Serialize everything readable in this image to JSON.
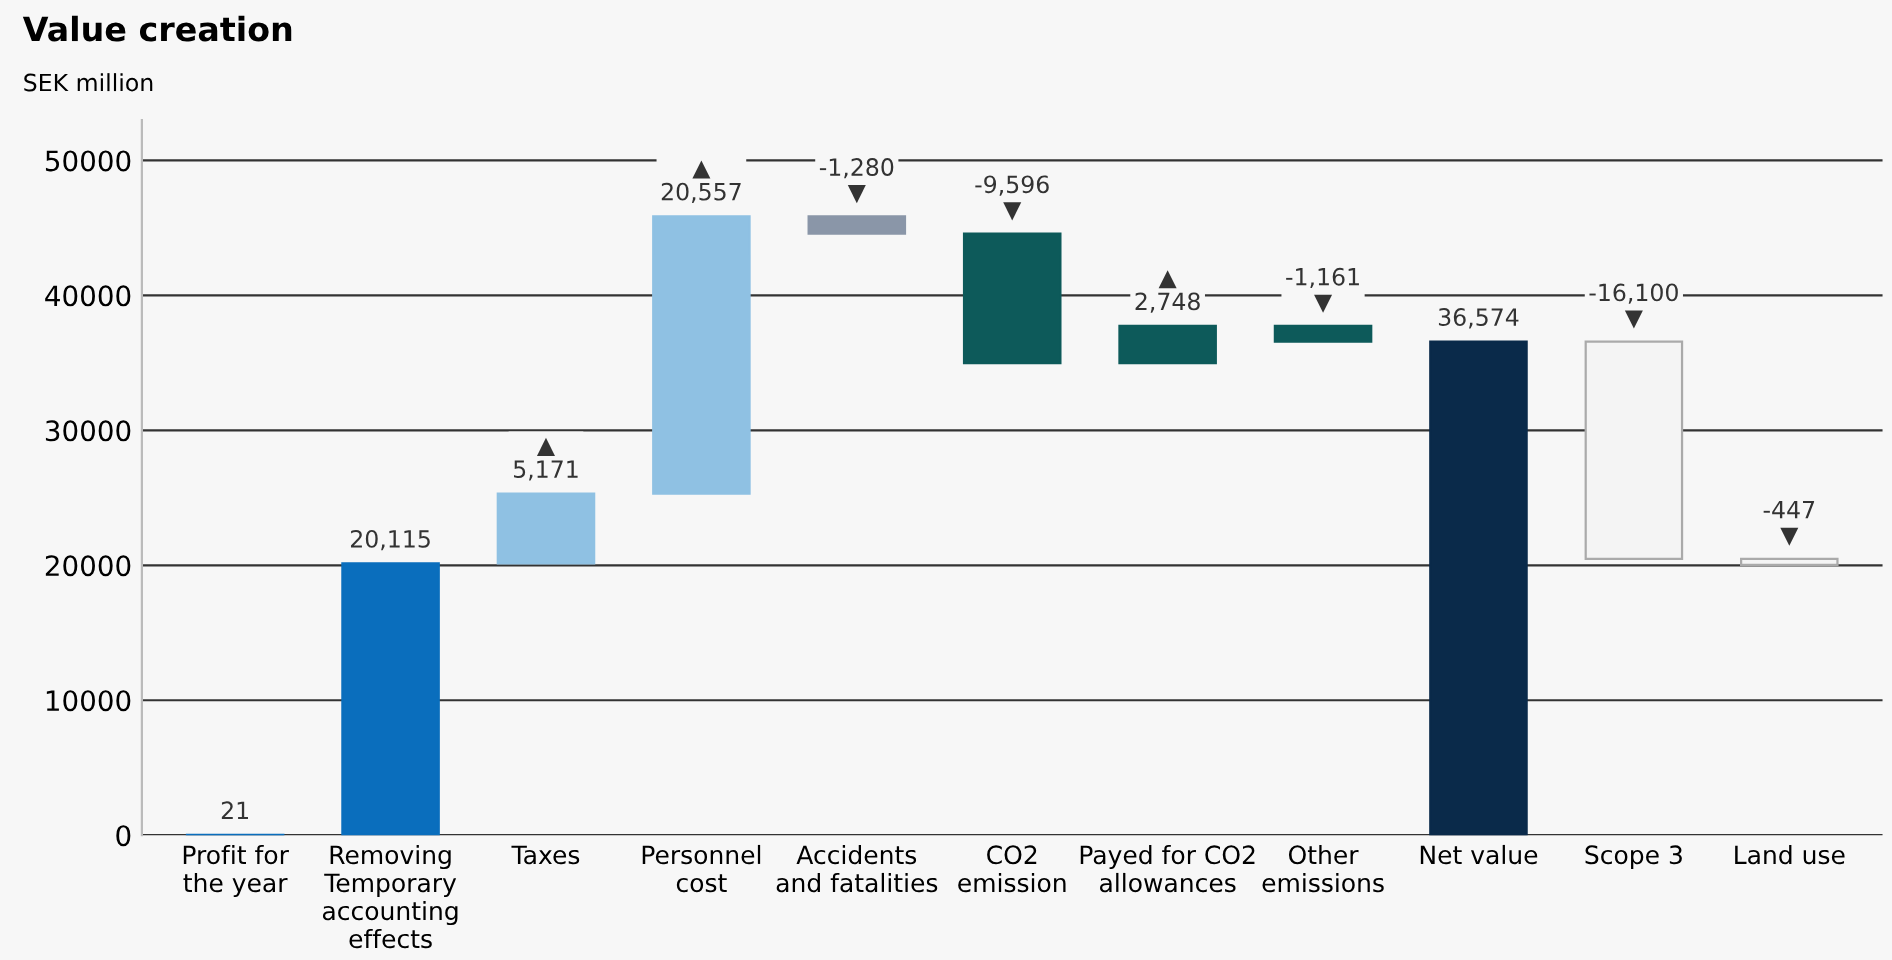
{
  "chart_data": {
    "type": "bar",
    "title": "Value creation",
    "ylabel": "SEK million",
    "categories": [
      "Profit for\nthe year",
      "Removing\nTemporary\naccounting\neffects",
      "Taxes",
      "Personnel\ncost",
      "Accidents\nand fatalities",
      "CO2\nemission",
      "Payed for CO2\nallowances",
      "Other\nemissions",
      "Net value",
      "Scope 3",
      "Land use"
    ],
    "values": [
      21,
      20115,
      5171,
      20557,
      -1280,
      -9596,
      2748,
      -1161,
      36574,
      -16100,
      -447
    ],
    "base": [
      0,
      21,
      20136,
      25307,
      45864,
      44584,
      34988,
      37736,
      0,
      36574,
      20474
    ],
    "colors": [
      "#0a6ebd",
      "#0a6ebd",
      "#8fc1e3",
      "#8fc1e3",
      "#8a96a8",
      "#0d5a5a",
      "#0d5a5a",
      "#0d5a5a",
      "#0a2a4a",
      "#f4f4f4",
      "#f4f4f4"
    ],
    "value_labels": [
      "21",
      "20,115",
      "▲\n5,171",
      "▲\n20,557",
      "-1,280\n▼",
      "-9,596\n▼",
      "▲\n2,748",
      "-1,161\n▼",
      "36,574",
      "-16,100\n▼",
      "-447\n▼"
    ],
    "ylim": [
      0,
      53000
    ],
    "yticks": [
      0,
      10000,
      20000,
      30000,
      40000,
      50000
    ],
    "grid": "y"
  }
}
